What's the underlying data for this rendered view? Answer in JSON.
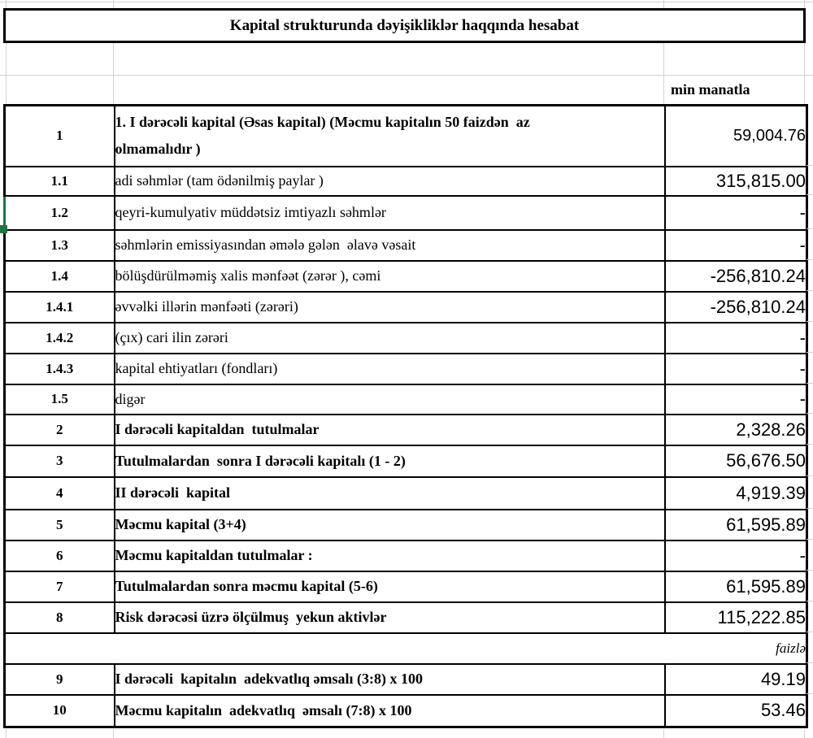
{
  "report": {
    "title": "Kapital strukturunda dəyişikliklər haqqında hesabat",
    "unit_note": "min manatla",
    "percent_note": "faizlə"
  },
  "colors": {
    "selection_green": "#217346",
    "border_black": "#000000",
    "gridline_gray": "#d2d2d2"
  },
  "table": {
    "rows": [
      {
        "no": "1",
        "label": "1. I dərəcəli kapital (Əsas kapital) (Məcmu kapitalın 50 faizdən  az \nolmamalıdır )",
        "value": "59,004.76"
      },
      {
        "no": "1.1",
        "label": "adi səhmlər (tam ödənilmiş paylar )",
        "value": "315,815.00"
      },
      {
        "no": "1.2",
        "label": "qeyri-kumulyativ müddətsiz imtiyazlı səhmlər",
        "value": "-"
      },
      {
        "no": "1.3",
        "label": "səhmlərin emissiyasından əmələ gələn  əlavə vəsait",
        "value": "-"
      },
      {
        "no": "1.4",
        "label": "bölüşdürülməmiş xalis mənfəət (zərər ), cəmi",
        "value": "-256,810.24"
      },
      {
        "no": "1.4.1",
        "label": "əvvəlki illərin mənfəəti (zərəri)",
        "value": "-256,810.24"
      },
      {
        "no": "1.4.2",
        "label": "(çıx) cari ilin zərəri",
        "value": "-"
      },
      {
        "no": "1.4.3",
        "label": "kapital ehtiyatları (fondları)",
        "value": "-"
      },
      {
        "no": "1.5",
        "label": "digər",
        "value": "-"
      },
      {
        "no": "2",
        "label": "I dərəcəli kapitaldan  tutulmalar",
        "value": "2,328.26"
      },
      {
        "no": "3",
        "label": "Tutulmalardan  sonra I dərəcəli kapitalı (1 - 2)",
        "value": "56,676.50"
      },
      {
        "no": "4",
        "label": "II dərəcəli  kapital",
        "value": "4,919.39"
      },
      {
        "no": "5",
        "label": "Məcmu kapital (3+4)",
        "value": "61,595.89"
      },
      {
        "no": "6",
        "label": "Məcmu kapitaldan tutulmalar :",
        "value": "-"
      },
      {
        "no": "7",
        "label": "Tutulmalardan sonra məcmu kapital (5-6)",
        "value": "61,595.89"
      },
      {
        "no": "8",
        "label": "Risk dərəcəsi üzrə ölçülmuş  yekun aktivlər",
        "value": "115,222.85"
      },
      {
        "no": "9",
        "label": "I dərəcəli  kapitalın  adekvatlıq əmsalı (3:8) x 100",
        "value": "49.19"
      },
      {
        "no": "10",
        "label": "Məcmu kapitalın  adekvatlıq  əmsalı (7:8) x 100",
        "value": "53.46"
      }
    ]
  }
}
